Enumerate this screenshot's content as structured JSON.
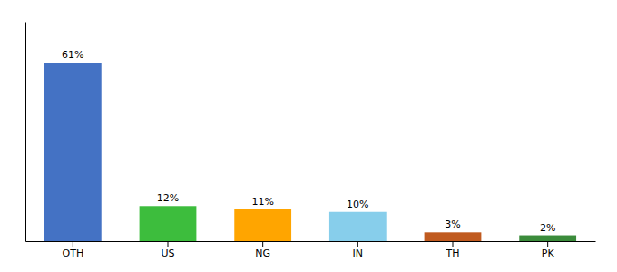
{
  "chart_data": {
    "type": "bar",
    "categories": [
      "OTH",
      "US",
      "NG",
      "IN",
      "TH",
      "PK"
    ],
    "values": [
      61,
      12,
      11,
      10,
      3,
      2
    ],
    "value_labels": [
      "61%",
      "12%",
      "11%",
      "10%",
      "3%",
      "2%"
    ],
    "colors": [
      "#4472C4",
      "#3DBD3D",
      "#FFA500",
      "#87CEEB",
      "#C05A1F",
      "#3B8C3B"
    ],
    "ylim": [
      0,
      75
    ],
    "data_labels": true,
    "tick_labels": "x",
    "grid": false
  }
}
